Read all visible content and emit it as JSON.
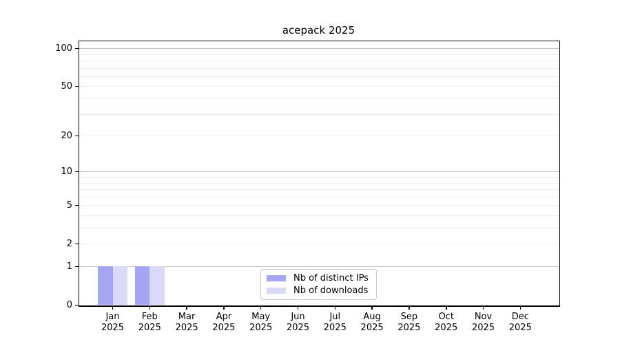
{
  "chart_data": {
    "type": "bar",
    "title": "acepack 2025",
    "categories": [
      "Jan",
      "Feb",
      "Mar",
      "Apr",
      "May",
      "Jun",
      "Jul",
      "Aug",
      "Sep",
      "Oct",
      "Nov",
      "Dec"
    ],
    "year_label": "2025",
    "series": [
      {
        "name": "Nb of distinct IPs",
        "color": "#a5a5f5",
        "values": [
          1,
          1,
          0,
          0,
          0,
          0,
          0,
          0,
          0,
          0,
          0,
          0
        ]
      },
      {
        "name": "Nb of downloads",
        "color": "#dadaf8",
        "values": [
          1,
          1,
          0,
          0,
          0,
          0,
          0,
          0,
          0,
          0,
          0,
          0
        ]
      }
    ],
    "yscale": "log1p",
    "ylim": [
      0,
      115
    ],
    "yticks": [
      0,
      1,
      2,
      5,
      10,
      20,
      50,
      100
    ],
    "gridlines": {
      "major": [
        1,
        10,
        100
      ],
      "minor": [
        2,
        3,
        4,
        5,
        6,
        7,
        8,
        9,
        20,
        30,
        40,
        50,
        60,
        70,
        80,
        90
      ],
      "major_color": "#c4c4c4",
      "minor_color": "#ececec"
    },
    "legend": {
      "position": "lower center",
      "entries": [
        "Nb of distinct IPs",
        "Nb of downloads"
      ]
    },
    "xlabel": "",
    "ylabel": "",
    "grid": true
  }
}
